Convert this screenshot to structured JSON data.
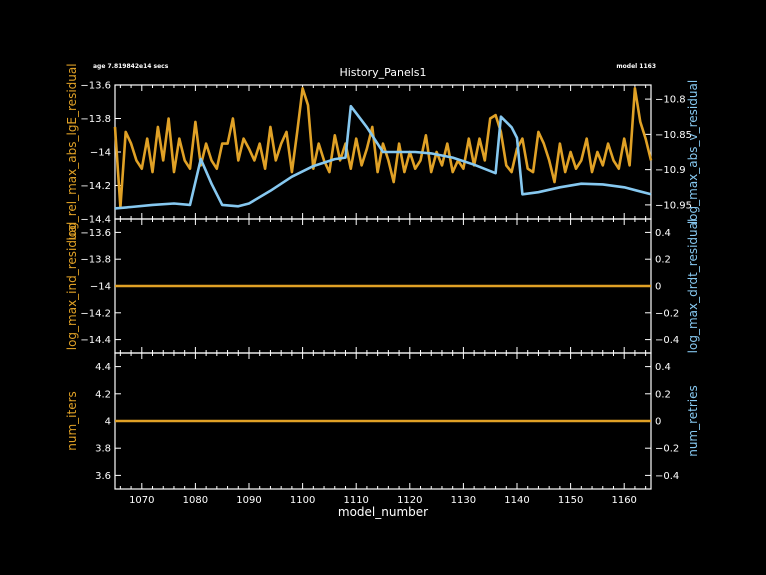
{
  "header": {
    "age": "age 7.819842e14 secs",
    "title": "History_Panels1",
    "model": "model 1163"
  },
  "colors": {
    "orange": "#E0A126",
    "blue": "#86C8F0",
    "frame": "#FFFFFF",
    "background": "#000000"
  },
  "chart_data": [
    {
      "type": "line",
      "panel": "top",
      "xlabel": "model_number",
      "xlim": [
        1065,
        1165
      ],
      "ylabel_left": "log_rel_max_abs_lgE_residual",
      "ylabel_right": "log_max_abs_v_residual",
      "ylim_left": [
        -14.4,
        -13.6
      ],
      "ylim_right": [
        -10.97,
        -10.78
      ],
      "yticks_left": [
        -13.6,
        -13.8,
        -14,
        -14.2,
        -14.4
      ],
      "yticks_right": [
        -10.8,
        -10.85,
        -10.9,
        -10.95
      ],
      "series": [
        {
          "name": "log_rel_max_abs_lgE_residual",
          "axis": "left",
          "color": "#E0A126",
          "x": [
            1065,
            1066,
            1067,
            1068,
            1069,
            1070,
            1071,
            1072,
            1073,
            1074,
            1075,
            1076,
            1077,
            1078,
            1079,
            1080,
            1081,
            1082,
            1083,
            1084,
            1085,
            1086,
            1087,
            1088,
            1089,
            1090,
            1091,
            1092,
            1093,
            1094,
            1095,
            1096,
            1097,
            1098,
            1099,
            1100,
            1101,
            1102,
            1103,
            1104,
            1105,
            1106,
            1107,
            1108,
            1109,
            1110,
            1111,
            1112,
            1113,
            1114,
            1115,
            1116,
            1117,
            1118,
            1119,
            1120,
            1121,
            1122,
            1123,
            1124,
            1125,
            1126,
            1127,
            1128,
            1129,
            1130,
            1131,
            1132,
            1133,
            1134,
            1135,
            1136,
            1137,
            1138,
            1139,
            1140,
            1141,
            1142,
            1143,
            1144,
            1145,
            1146,
            1147,
            1148,
            1149,
            1150,
            1151,
            1152,
            1153,
            1154,
            1155,
            1156,
            1157,
            1158,
            1159,
            1160,
            1161,
            1162,
            1163,
            1164,
            1165
          ],
          "y": [
            -13.85,
            -14.33,
            -13.88,
            -13.95,
            -14.05,
            -14.1,
            -13.92,
            -14.12,
            -13.85,
            -14.05,
            -13.8,
            -14.12,
            -13.92,
            -14.05,
            -14.1,
            -13.82,
            -14.08,
            -13.95,
            -14.05,
            -14.1,
            -13.95,
            -13.95,
            -13.8,
            -14.05,
            -13.92,
            -13.98,
            -14.05,
            -13.95,
            -14.1,
            -13.85,
            -14.05,
            -13.95,
            -13.88,
            -14.12,
            -13.88,
            -13.62,
            -13.72,
            -14.1,
            -13.95,
            -14.05,
            -14.12,
            -13.9,
            -14.05,
            -13.95,
            -14.1,
            -13.92,
            -14.08,
            -13.98,
            -13.85,
            -14.12,
            -13.95,
            -14.05,
            -14.18,
            -13.95,
            -14.12,
            -14.0,
            -14.1,
            -14.05,
            -13.9,
            -14.12,
            -14.0,
            -14.08,
            -13.95,
            -14.12,
            -14.05,
            -14.1,
            -13.92,
            -14.08,
            -13.92,
            -14.05,
            -13.8,
            -13.78,
            -13.88,
            -14.08,
            -14.12,
            -13.98,
            -13.92,
            -14.1,
            -14.12,
            -13.88,
            -13.95,
            -14.05,
            -14.18,
            -13.95,
            -14.12,
            -14.0,
            -14.1,
            -14.05,
            -13.92,
            -14.12,
            -14.0,
            -14.08,
            -13.95,
            -14.05,
            -14.1,
            -13.92,
            -14.08,
            -13.62,
            -13.82,
            -13.92,
            -14.05
          ]
        },
        {
          "name": "log_max_abs_v_residual",
          "axis": "right",
          "color": "#86C8F0",
          "x": [
            1065,
            1068,
            1072,
            1076,
            1079,
            1081,
            1083,
            1085,
            1088,
            1090,
            1094,
            1098,
            1102,
            1106,
            1108,
            1109,
            1110,
            1112,
            1115,
            1118,
            1121,
            1124,
            1128,
            1132,
            1136,
            1137,
            1139,
            1140,
            1141,
            1144,
            1148,
            1152,
            1156,
            1160,
            1165
          ],
          "y": [
            -10.955,
            -10.953,
            -10.95,
            -10.948,
            -10.95,
            -10.885,
            -10.92,
            -10.95,
            -10.952,
            -10.948,
            -10.93,
            -10.91,
            -10.895,
            -10.885,
            -10.883,
            -10.81,
            -10.82,
            -10.84,
            -10.875,
            -10.875,
            -10.875,
            -10.877,
            -10.883,
            -10.893,
            -10.905,
            -10.825,
            -10.84,
            -10.855,
            -10.935,
            -10.932,
            -10.925,
            -10.92,
            -10.921,
            -10.925,
            -10.935
          ]
        }
      ]
    },
    {
      "type": "line",
      "panel": "middle",
      "ylabel_left": "log_max_ind_residual",
      "ylabel_right": "log_max_drdt_residual",
      "ylim_left": [
        -14.5,
        -13.5
      ],
      "ylim_right": [
        -0.5,
        0.5
      ],
      "yticks_left": [
        -13.6,
        -13.8,
        -14,
        -14.2,
        -14.4
      ],
      "yticks_right": [
        0.4,
        0.2,
        0,
        -0.2,
        -0.4
      ],
      "series": [
        {
          "name": "log_max_ind_residual",
          "axis": "left",
          "color": "#E0A126",
          "x": [
            1065,
            1165
          ],
          "y": [
            -14,
            -14
          ]
        }
      ]
    },
    {
      "type": "line",
      "panel": "bottom",
      "ylabel_left": "num_iters",
      "ylabel_right": "num_retries",
      "ylim_left": [
        3.5,
        4.5
      ],
      "ylim_right": [
        -0.5,
        0.5
      ],
      "yticks_left": [
        4.4,
        4.2,
        4,
        3.8,
        3.6
      ],
      "yticks_right": [
        0.4,
        0.2,
        0,
        -0.2,
        -0.4
      ],
      "xticks": [
        1070,
        1080,
        1090,
        1100,
        1110,
        1120,
        1130,
        1140,
        1150,
        1160
      ],
      "series": [
        {
          "name": "num_iters",
          "axis": "left",
          "color": "#E0A126",
          "x": [
            1065,
            1165
          ],
          "y": [
            4,
            4
          ]
        }
      ]
    }
  ]
}
